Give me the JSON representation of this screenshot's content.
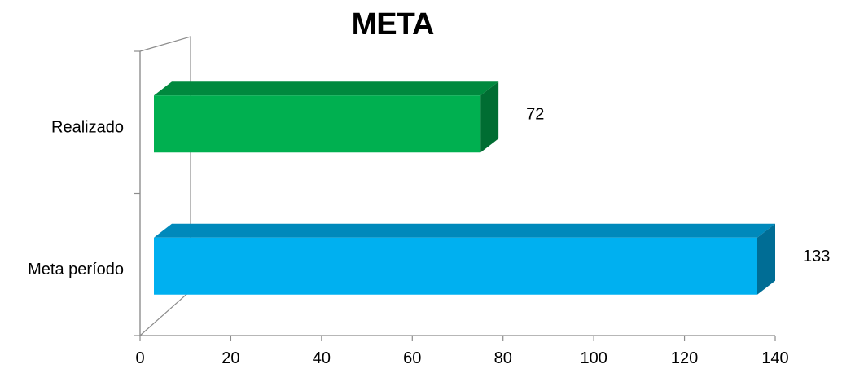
{
  "chart_data": {
    "type": "bar",
    "orientation": "horizontal",
    "three_d": true,
    "title": "META",
    "categories": [
      "Meta período",
      "Realizado"
    ],
    "values": [
      133,
      72
    ],
    "data_labels": [
      "133",
      "72"
    ],
    "colors": [
      "#00b0f0",
      "#00b050"
    ],
    "xlim": [
      0,
      140
    ],
    "x_ticks": [
      0,
      20,
      40,
      60,
      80,
      100,
      120,
      140
    ],
    "xlabel": "",
    "ylabel": "",
    "grid": false,
    "legend": false
  }
}
